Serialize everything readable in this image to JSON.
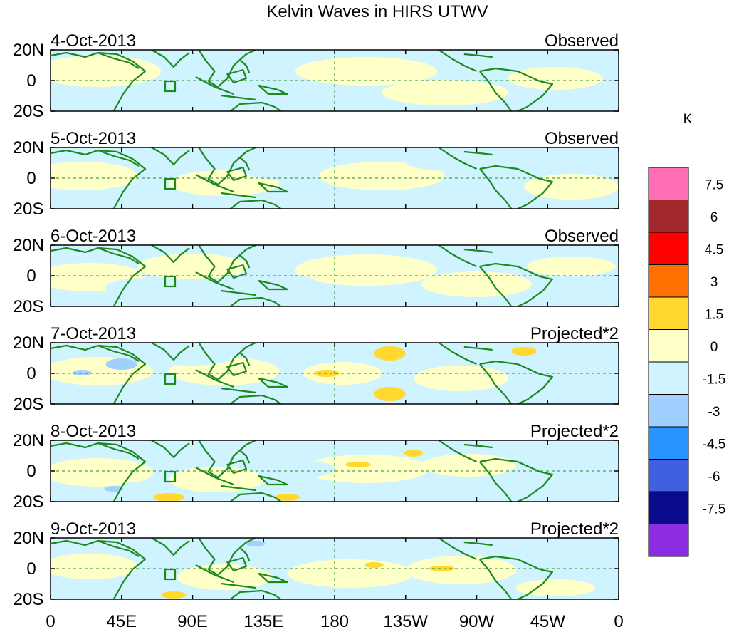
{
  "title": "Kelvin Waves in HIRS UTWV",
  "unit": "K",
  "panels": [
    {
      "date": "4-Oct-2013",
      "kind": "Observed"
    },
    {
      "date": "5-Oct-2013",
      "kind": "Observed"
    },
    {
      "date": "6-Oct-2013",
      "kind": "Observed"
    },
    {
      "date": "7-Oct-2013",
      "kind": "Projected*2"
    },
    {
      "date": "8-Oct-2013",
      "kind": "Projected*2"
    },
    {
      "date": "9-Oct-2013",
      "kind": "Projected*2"
    }
  ],
  "lat_ticks": [
    "20N",
    "0",
    "20S"
  ],
  "lon_ticks": [
    "0",
    "45E",
    "90E",
    "135E",
    "180",
    "135W",
    "90W",
    "45W",
    "0"
  ],
  "colorbar": {
    "labels": [
      "7.5",
      "6",
      "4.5",
      "3",
      "1.5",
      "0",
      "-1.5",
      "-3",
      "-4.5",
      "-6",
      "-7.5"
    ],
    "colors": [
      "#ff6eb4",
      "#a0282d",
      "#ff0000",
      "#ff7000",
      "#ffd92f",
      "#ffffc8",
      "#cff4ff",
      "#a0d0ff",
      "#2894ff",
      "#4060e0",
      "#0a0a8c",
      "#8b2be2"
    ]
  },
  "map_colors": {
    "pos1": "#ffffc8",
    "pos2": "#ffd92f",
    "neg1": "#cff4ff",
    "neg2": "#a0d0ff",
    "coast": "#1e8a1e",
    "guide": "#2a8a2a"
  }
}
